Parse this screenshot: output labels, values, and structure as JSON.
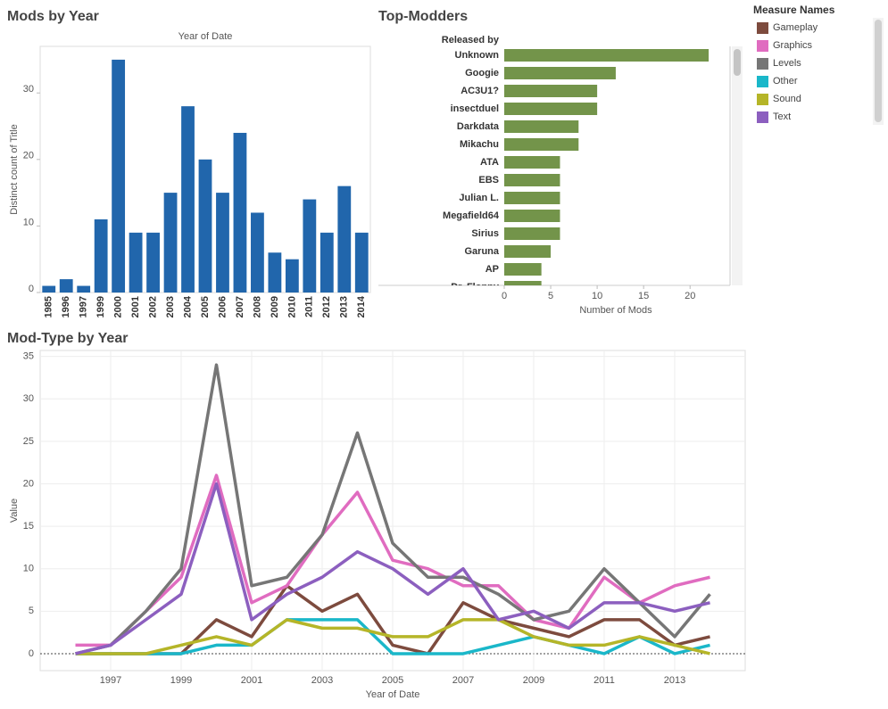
{
  "chart_data": [
    {
      "type": "bar",
      "title": "Mods by Year",
      "x_header": "Year of Date",
      "y_label": "Distinct count of Title",
      "categories": [
        "1985",
        "1996",
        "1997",
        "1999",
        "2000",
        "2001",
        "2002",
        "2003",
        "2004",
        "2005",
        "2006",
        "2007",
        "2008",
        "2009",
        "2010",
        "2011",
        "2012",
        "2013",
        "2014"
      ],
      "values": [
        1,
        2,
        1,
        11,
        35,
        9,
        9,
        15,
        28,
        20,
        15,
        24,
        12,
        6,
        5,
        14,
        9,
        16,
        9
      ],
      "color": "#2166ac",
      "ylim": [
        0,
        37
      ],
      "yticks": [
        0,
        10,
        20,
        30
      ]
    },
    {
      "type": "hbar",
      "title": "Top-Modders",
      "y_header": "Released by",
      "x_label": "Number of Mods",
      "categories": [
        "Unknown",
        "Googie",
        "AC3U1?",
        "insectduel",
        "Darkdata",
        "Mikachu",
        "ATA",
        "EBS",
        "Julian L.",
        "Megafield64",
        "Sirius",
        "Garuna",
        "AP",
        "Dr. Floppy"
      ],
      "values": [
        22,
        12,
        10,
        10,
        8,
        8,
        6,
        6,
        6,
        6,
        6,
        5,
        4,
        4
      ],
      "color": "#73944a",
      "xlim": [
        0,
        24.3
      ],
      "xticks": [
        0,
        5,
        10,
        15,
        20
      ]
    },
    {
      "type": "line",
      "title": "Mod-Type by Year",
      "x_label": "Year of Date",
      "y_label": "Value",
      "legend_title": "Measure Names",
      "x": [
        1996,
        1997,
        1998,
        1999,
        2000,
        2001,
        2002,
        2003,
        2004,
        2005,
        2006,
        2007,
        2008,
        2009,
        2010,
        2011,
        2012,
        2013,
        2014
      ],
      "series": [
        {
          "name": "Gameplay",
          "color": "#7d4b3e",
          "values": [
            0,
            0,
            0,
            0,
            4,
            2,
            8,
            5,
            7,
            1,
            0,
            6,
            4,
            3,
            2,
            4,
            4,
            1,
            2
          ]
        },
        {
          "name": "Graphics",
          "color": "#e06cc0",
          "values": [
            1,
            1,
            5,
            9,
            21,
            6,
            8,
            14,
            19,
            11,
            10,
            8,
            8,
            4,
            3,
            9,
            6,
            8,
            9
          ]
        },
        {
          "name": "Levels",
          "color": "#767676",
          "values": [
            0,
            1,
            5,
            10,
            34,
            8,
            9,
            14,
            26,
            13,
            9,
            9,
            7,
            4,
            5,
            10,
            6,
            2,
            7
          ]
        },
        {
          "name": "Other",
          "color": "#1ab7c9",
          "values": [
            0,
            0,
            0,
            0,
            1,
            1,
            4,
            4,
            4,
            0,
            0,
            0,
            1,
            2,
            1,
            0,
            2,
            0,
            1
          ]
        },
        {
          "name": "Sound",
          "color": "#b5b528",
          "values": [
            0,
            0,
            0,
            1,
            2,
            1,
            4,
            3,
            3,
            2,
            2,
            4,
            4,
            2,
            1,
            1,
            2,
            1,
            0
          ]
        },
        {
          "name": "Text",
          "color": "#8c5fbf",
          "values": [
            0,
            1,
            4,
            7,
            20,
            4,
            7,
            9,
            12,
            10,
            7,
            10,
            4,
            5,
            3,
            6,
            6,
            5,
            6
          ]
        }
      ],
      "xlim": [
        1995,
        2015
      ],
      "xticks": [
        1997,
        1999,
        2001,
        2003,
        2005,
        2007,
        2009,
        2011,
        2013
      ],
      "ylim": [
        -2,
        35.7
      ],
      "yticks": [
        0,
        5,
        10,
        15,
        20,
        25,
        30,
        35
      ],
      "grid": true
    }
  ]
}
